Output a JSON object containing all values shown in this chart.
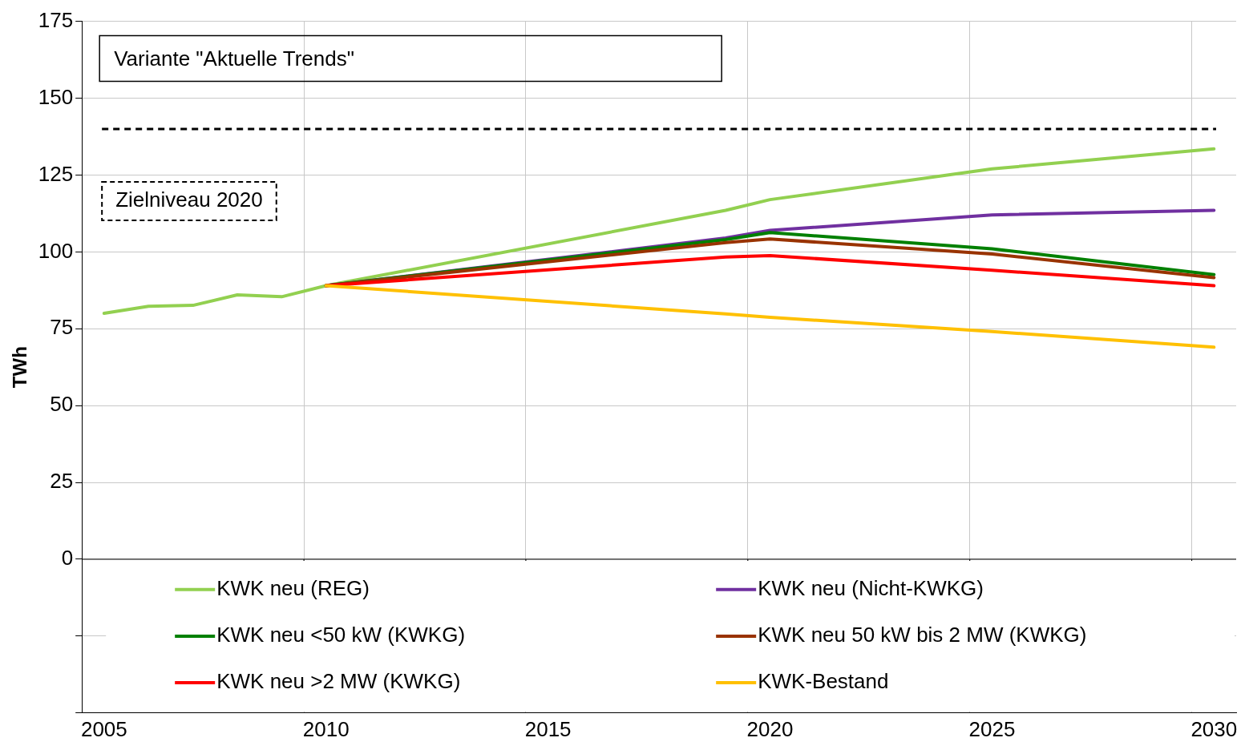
{
  "chart_data": {
    "type": "line",
    "title": "Variante \"Aktuelle Trends\"",
    "ylabel": "TWh",
    "categories": [
      "2005",
      null,
      null,
      null,
      null,
      "2010",
      null,
      null,
      null,
      null,
      "2015",
      null,
      null,
      null,
      null,
      "2020",
      null,
      null,
      null,
      null,
      "2025",
      null,
      null,
      null,
      null,
      "2030"
    ],
    "series": [
      {
        "name": "KWK-Bestand",
        "color": "#ffc000",
        "values": [
          null,
          null,
          null,
          null,
          null,
          89,
          null,
          null,
          null,
          null,
          null,
          null,
          null,
          null,
          79.8,
          78.7,
          null,
          null,
          null,
          null,
          74.1,
          null,
          null,
          null,
          null,
          69
        ]
      },
      {
        "name": "KWK neu >2 MW (KWKG)",
        "color": "#ff0000",
        "values": [
          null,
          null,
          null,
          null,
          null,
          89,
          null,
          null,
          null,
          null,
          null,
          null,
          null,
          null,
          98.3,
          98.8,
          null,
          null,
          null,
          null,
          94,
          null,
          null,
          null,
          null,
          89
        ]
      },
      {
        "name": "KWK neu 50 kW bis 2 MW (KWKG)",
        "color": "#993300",
        "values": [
          null,
          null,
          null,
          null,
          null,
          89,
          null,
          null,
          null,
          null,
          null,
          null,
          null,
          null,
          103,
          104.2,
          null,
          null,
          null,
          null,
          99.3,
          null,
          null,
          null,
          null,
          91.6
        ]
      },
      {
        "name": "KWK neu <50 kW (KWKG)",
        "color": "#008000",
        "values": [
          null,
          null,
          null,
          null,
          null,
          89,
          null,
          null,
          null,
          null,
          null,
          null,
          null,
          null,
          104,
          106.3,
          null,
          null,
          null,
          null,
          101,
          null,
          null,
          null,
          null,
          92.6
        ]
      },
      {
        "name": "KWK neu (Nicht-KWKG)",
        "color": "#7030a0",
        "values": [
          null,
          null,
          null,
          null,
          null,
          89,
          null,
          null,
          null,
          null,
          null,
          null,
          null,
          null,
          104.5,
          107,
          null,
          null,
          null,
          null,
          112,
          null,
          null,
          null,
          null,
          113.5
        ]
      },
      {
        "name": "KWK neu (REG)",
        "color": "#92d050",
        "values": [
          80,
          82.3,
          82.6,
          86,
          85.4,
          89,
          null,
          null,
          null,
          null,
          null,
          null,
          null,
          null,
          113.5,
          117,
          null,
          null,
          null,
          null,
          127,
          null,
          null,
          null,
          null,
          133.5
        ]
      }
    ],
    "ylim": [
      -50,
      175
    ],
    "yticks": [
      {
        "value": -50,
        "label": null
      },
      {
        "value": -25,
        "label": null
      },
      0,
      25,
      50,
      75,
      100,
      125,
      150,
      175
    ],
    "ref_lines": [
      {
        "axis": "y",
        "value": 140,
        "label": "Zielniveau 2020",
        "color": "#000000",
        "line_style": "dashed"
      }
    ],
    "grid": true,
    "legend": "bottom",
    "marker": "none",
    "line_style": "solid"
  }
}
